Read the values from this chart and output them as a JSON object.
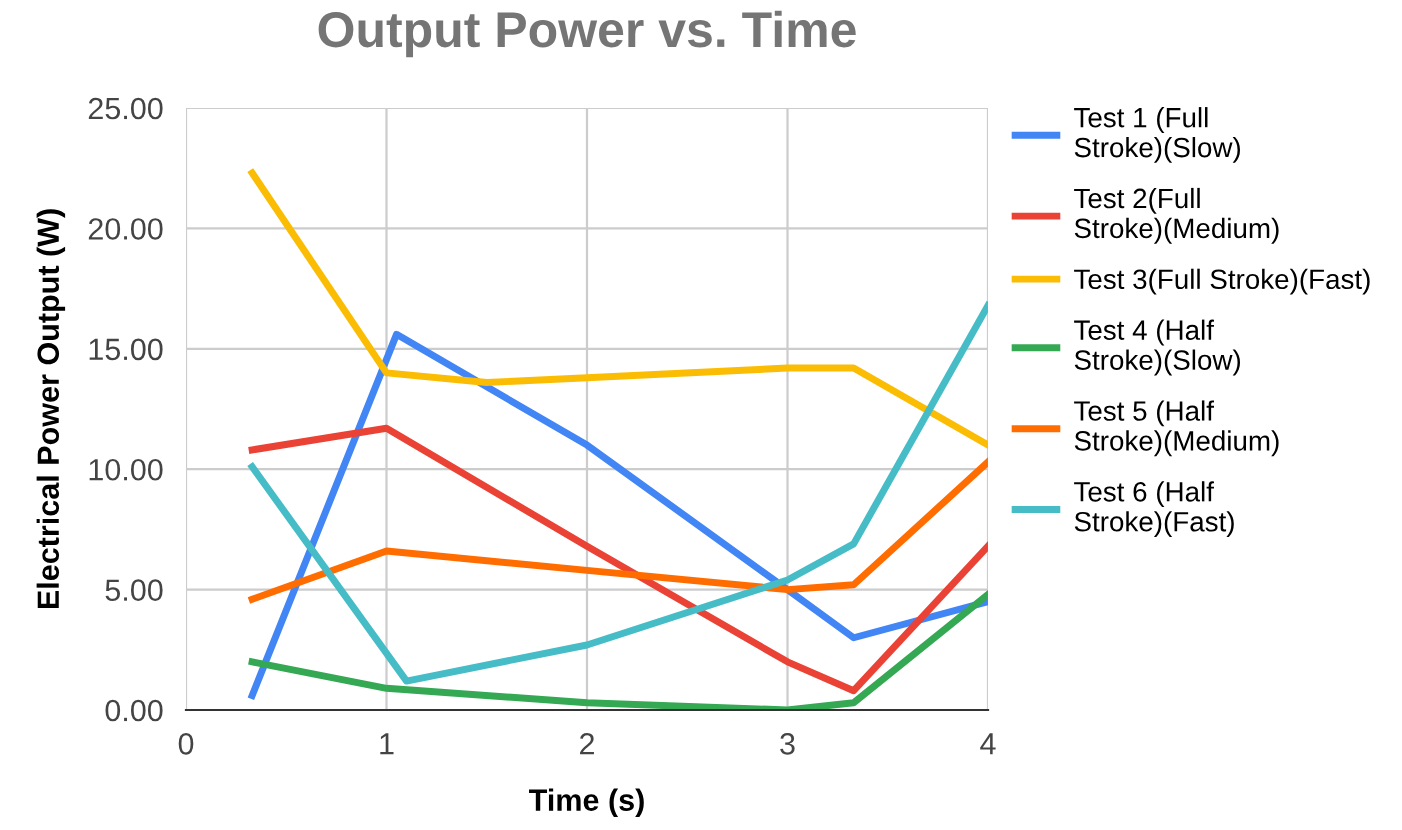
{
  "chart_data": {
    "type": "line",
    "title": "Output Power vs. Time",
    "xlabel": "Time (s)",
    "ylabel": "Electrical Power Output (W)",
    "xlim": [
      0,
      4
    ],
    "xticks": [
      0,
      1,
      2,
      3,
      4
    ],
    "ylim": [
      0,
      25
    ],
    "yticks": [
      {
        "value": 0,
        "label": "0.00"
      },
      {
        "value": 5,
        "label": "5.00"
      },
      {
        "value": 10,
        "label": "10.00"
      },
      {
        "value": 15,
        "label": "15.00"
      },
      {
        "value": 20,
        "label": "20.00"
      },
      {
        "value": 25,
        "label": "25.00"
      }
    ],
    "grid": true,
    "legend": "right",
    "marker": "none",
    "line_style": "solid",
    "x": [
      0.33,
      1,
      2,
      3,
      3.33,
      4
    ],
    "series": [
      {
        "name": "Test 1 (Full\nStroke)(Slow)",
        "color": "#4285f4",
        "x": [
          0.33,
          1.05,
          2,
          3,
          3.33,
          4
        ],
        "values": [
          0.6,
          15.6,
          11.0,
          5.0,
          3.0,
          4.5
        ]
      },
      {
        "name": "Test 2(Full\nStroke)(Medium)",
        "color": "#ea4335",
        "values": [
          10.8,
          11.7,
          6.8,
          2.0,
          0.8,
          6.8
        ]
      },
      {
        "name": "Test 3(Full Stroke)(Fast)",
        "color": "#fbbc04",
        "x": [
          0.33,
          1,
          1.5,
          2,
          3,
          3.33,
          4
        ],
        "values": [
          22.3,
          14.0,
          13.6,
          13.8,
          14.2,
          14.2,
          11.0
        ]
      },
      {
        "name": "Test 4 (Half\nStroke)(Slow)",
        "color": "#34a853",
        "values": [
          2.0,
          0.9,
          0.3,
          0.0,
          0.3,
          4.8
        ]
      },
      {
        "name": "Test 5 (Half\nStroke)(Medium)",
        "color": "#ff6d01",
        "values": [
          4.6,
          6.6,
          5.8,
          5.0,
          5.2,
          10.3
        ]
      },
      {
        "name": "Test 6 (Half\nStroke)(Fast)",
        "color": "#46bdc6",
        "x": [
          0.33,
          1.1,
          2,
          3,
          3.33,
          4
        ],
        "values": [
          10.1,
          1.2,
          2.7,
          5.4,
          6.9,
          16.8
        ]
      }
    ]
  }
}
